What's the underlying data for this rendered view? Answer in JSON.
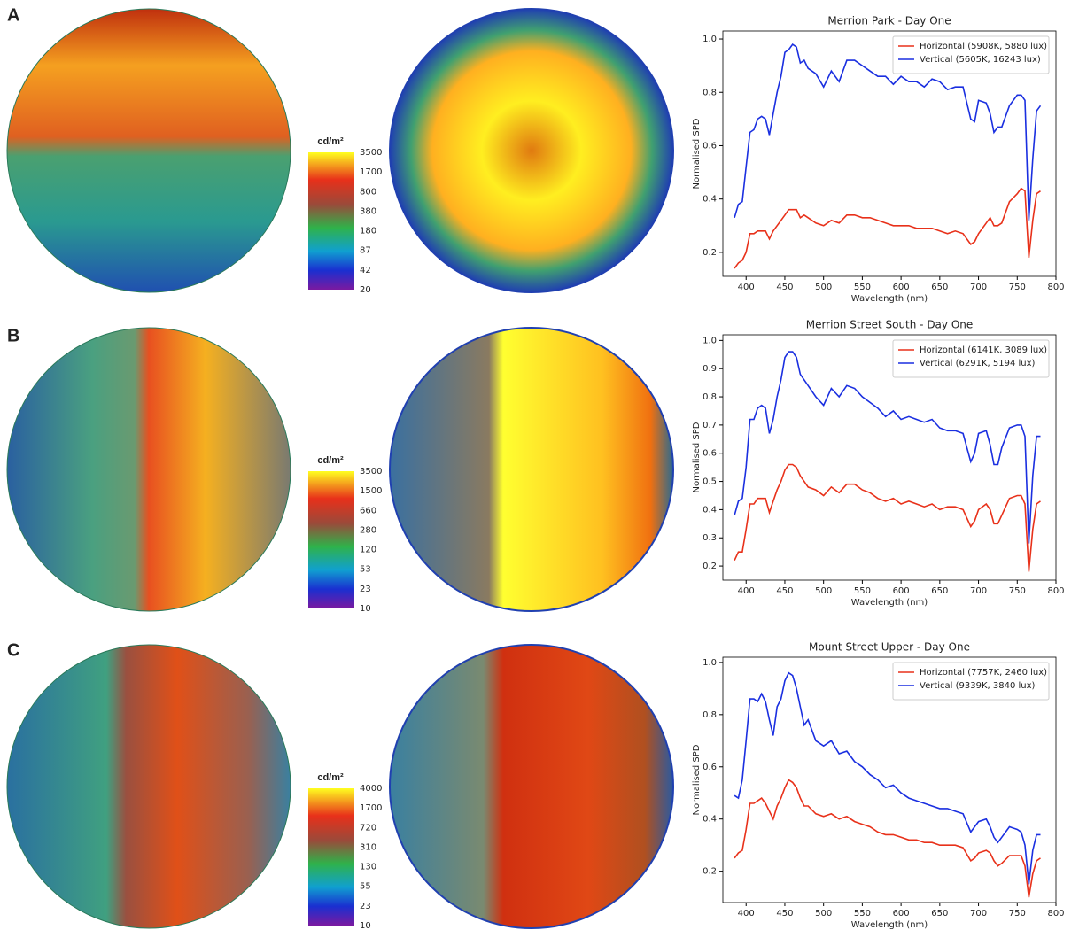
{
  "panels": [
    {
      "label": "A",
      "colorbar": {
        "title": "cd/m²",
        "ticks": [
          3500,
          1700,
          800,
          380,
          180,
          87,
          42,
          20
        ]
      }
    },
    {
      "label": "B",
      "colorbar": {
        "title": "cd/m²",
        "ticks": [
          3500,
          1500,
          660,
          280,
          120,
          53,
          23,
          10
        ]
      }
    },
    {
      "label": "C",
      "colorbar": {
        "title": "cd/m²",
        "ticks": [
          4000,
          1700,
          720,
          310,
          130,
          55,
          23,
          10
        ]
      }
    }
  ],
  "chart_data": [
    {
      "type": "line",
      "title": "Merrion Park - Day One",
      "x_label": "Wavelength (nm)",
      "y_label": "Normalised SPD",
      "legend": "upper right",
      "x": [
        385,
        390,
        395,
        400,
        405,
        410,
        415,
        420,
        425,
        430,
        435,
        440,
        445,
        450,
        455,
        460,
        465,
        470,
        475,
        480,
        490,
        500,
        510,
        520,
        530,
        540,
        550,
        560,
        570,
        580,
        590,
        600,
        610,
        620,
        630,
        640,
        650,
        660,
        670,
        680,
        690,
        695,
        700,
        710,
        715,
        720,
        725,
        730,
        740,
        750,
        755,
        760,
        765,
        770,
        775,
        780
      ],
      "series": [
        {
          "name": "Horizontal (5908K, 5880 lux)",
          "color": "#e8311a",
          "values": [
            0.14,
            0.16,
            0.17,
            0.2,
            0.27,
            0.27,
            0.28,
            0.28,
            0.28,
            0.25,
            0.28,
            0.3,
            0.32,
            0.34,
            0.36,
            0.36,
            0.36,
            0.33,
            0.34,
            0.33,
            0.31,
            0.3,
            0.32,
            0.31,
            0.34,
            0.34,
            0.33,
            0.33,
            0.32,
            0.31,
            0.3,
            0.3,
            0.3,
            0.29,
            0.29,
            0.29,
            0.28,
            0.27,
            0.28,
            0.27,
            0.23,
            0.24,
            0.27,
            0.31,
            0.33,
            0.3,
            0.3,
            0.31,
            0.39,
            0.42,
            0.44,
            0.43,
            0.18,
            0.32,
            0.42,
            0.43
          ]
        },
        {
          "name": "Vertical (5605K, 16243 lux)",
          "color": "#1a2fe0",
          "values": [
            0.33,
            0.38,
            0.39,
            0.52,
            0.65,
            0.66,
            0.7,
            0.71,
            0.7,
            0.64,
            0.72,
            0.8,
            0.86,
            0.95,
            0.96,
            0.98,
            0.97,
            0.91,
            0.92,
            0.89,
            0.87,
            0.82,
            0.88,
            0.84,
            0.92,
            0.92,
            0.9,
            0.88,
            0.86,
            0.86,
            0.83,
            0.86,
            0.84,
            0.84,
            0.82,
            0.85,
            0.84,
            0.81,
            0.82,
            0.82,
            0.7,
            0.69,
            0.77,
            0.76,
            0.72,
            0.65,
            0.67,
            0.67,
            0.75,
            0.79,
            0.79,
            0.77,
            0.32,
            0.55,
            0.73,
            0.75
          ]
        }
      ],
      "xlim": [
        370,
        800
      ],
      "ylim": [
        0.11,
        1.03
      ],
      "xticks": [
        400,
        450,
        500,
        550,
        600,
        650,
        700,
        750,
        800
      ],
      "yticks": [
        0.2,
        0.4,
        0.6,
        0.8,
        {
          "value": 1,
          "label": "1.0"
        }
      ]
    },
    {
      "type": "line",
      "title": "Merrion Street South - Day One",
      "x_label": "Wavelength (nm)",
      "y_label": "Normalised SPD",
      "legend": "upper right",
      "x": [
        385,
        390,
        395,
        400,
        405,
        410,
        415,
        420,
        425,
        430,
        435,
        440,
        445,
        450,
        455,
        460,
        465,
        470,
        475,
        480,
        490,
        500,
        510,
        520,
        530,
        540,
        550,
        560,
        570,
        580,
        590,
        600,
        610,
        620,
        630,
        640,
        650,
        660,
        670,
        680,
        690,
        695,
        700,
        710,
        715,
        720,
        725,
        730,
        740,
        750,
        755,
        760,
        765,
        770,
        775,
        780
      ],
      "series": [
        {
          "name": "Horizontal (6141K, 3089 lux)",
          "color": "#e8311a",
          "values": [
            0.22,
            0.25,
            0.25,
            0.33,
            0.42,
            0.42,
            0.44,
            0.44,
            0.44,
            0.39,
            0.43,
            0.47,
            0.5,
            0.54,
            0.56,
            0.56,
            0.55,
            0.52,
            0.5,
            0.48,
            0.47,
            0.45,
            0.48,
            0.46,
            0.49,
            0.49,
            0.47,
            0.46,
            0.44,
            0.43,
            0.44,
            0.42,
            0.43,
            0.42,
            0.41,
            0.42,
            0.4,
            0.41,
            0.41,
            0.4,
            0.34,
            0.36,
            0.4,
            0.42,
            0.4,
            0.35,
            0.35,
            0.38,
            0.44,
            0.45,
            0.45,
            0.42,
            0.18,
            0.33,
            0.42,
            0.43
          ]
        },
        {
          "name": "Vertical (6291K, 5194 lux)",
          "color": "#1a2fe0",
          "values": [
            0.38,
            0.43,
            0.44,
            0.55,
            0.72,
            0.72,
            0.76,
            0.77,
            0.76,
            0.67,
            0.72,
            0.8,
            0.86,
            0.94,
            0.96,
            0.96,
            0.94,
            0.88,
            0.86,
            0.84,
            0.8,
            0.77,
            0.83,
            0.8,
            0.84,
            0.83,
            0.8,
            0.78,
            0.76,
            0.73,
            0.75,
            0.72,
            0.73,
            0.72,
            0.71,
            0.72,
            0.69,
            0.68,
            0.68,
            0.67,
            0.57,
            0.6,
            0.67,
            0.68,
            0.63,
            0.56,
            0.56,
            0.62,
            0.69,
            0.7,
            0.7,
            0.66,
            0.28,
            0.52,
            0.66,
            0.66
          ]
        }
      ],
      "xlim": [
        370,
        800
      ],
      "ylim": [
        0.15,
        1.02
      ],
      "xticks": [
        400,
        450,
        500,
        550,
        600,
        650,
        700,
        750,
        800
      ],
      "yticks": [
        0.2,
        0.3,
        0.4,
        0.5,
        0.6,
        0.7,
        0.8,
        0.9,
        {
          "value": 1,
          "label": "1.0"
        }
      ]
    },
    {
      "type": "line",
      "title": "Mount Street Upper - Day One",
      "x_label": "Wavelength (nm)",
      "y_label": "Normalised SPD",
      "legend": "upper right",
      "x": [
        385,
        390,
        395,
        400,
        405,
        410,
        415,
        420,
        425,
        430,
        435,
        440,
        445,
        450,
        455,
        460,
        465,
        470,
        475,
        480,
        490,
        500,
        510,
        520,
        530,
        540,
        550,
        560,
        570,
        580,
        590,
        600,
        610,
        620,
        630,
        640,
        650,
        660,
        670,
        680,
        690,
        695,
        700,
        710,
        715,
        720,
        725,
        730,
        740,
        750,
        755,
        760,
        765,
        770,
        775,
        780
      ],
      "series": [
        {
          "name": "Horizontal (7757K, 2460 lux)",
          "color": "#e8311a",
          "values": [
            0.25,
            0.27,
            0.28,
            0.36,
            0.46,
            0.46,
            0.47,
            0.48,
            0.46,
            0.43,
            0.4,
            0.45,
            0.48,
            0.52,
            0.55,
            0.54,
            0.52,
            0.48,
            0.45,
            0.45,
            0.42,
            0.41,
            0.42,
            0.4,
            0.41,
            0.39,
            0.38,
            0.37,
            0.35,
            0.34,
            0.34,
            0.33,
            0.32,
            0.32,
            0.31,
            0.31,
            0.3,
            0.3,
            0.3,
            0.29,
            0.24,
            0.25,
            0.27,
            0.28,
            0.27,
            0.24,
            0.22,
            0.23,
            0.26,
            0.26,
            0.26,
            0.22,
            0.1,
            0.19,
            0.24,
            0.25
          ]
        },
        {
          "name": "Vertical (9339K, 3840 lux)",
          "color": "#1a2fe0",
          "values": [
            0.49,
            0.48,
            0.55,
            0.7,
            0.86,
            0.86,
            0.85,
            0.88,
            0.85,
            0.78,
            0.72,
            0.83,
            0.86,
            0.93,
            0.96,
            0.95,
            0.9,
            0.83,
            0.76,
            0.78,
            0.7,
            0.68,
            0.7,
            0.65,
            0.66,
            0.62,
            0.6,
            0.57,
            0.55,
            0.52,
            0.53,
            0.5,
            0.48,
            0.47,
            0.46,
            0.45,
            0.44,
            0.44,
            0.43,
            0.42,
            0.35,
            0.37,
            0.39,
            0.4,
            0.37,
            0.33,
            0.31,
            0.33,
            0.37,
            0.36,
            0.35,
            0.3,
            0.15,
            0.28,
            0.34,
            0.34
          ]
        }
      ],
      "xlim": [
        370,
        800
      ],
      "ylim": [
        0.08,
        1.02
      ],
      "xticks": [
        400,
        450,
        500,
        550,
        600,
        650,
        700,
        750,
        800
      ],
      "yticks": [
        0.2,
        0.4,
        0.6,
        0.8,
        {
          "value": 1,
          "label": "1.0"
        }
      ]
    }
  ]
}
